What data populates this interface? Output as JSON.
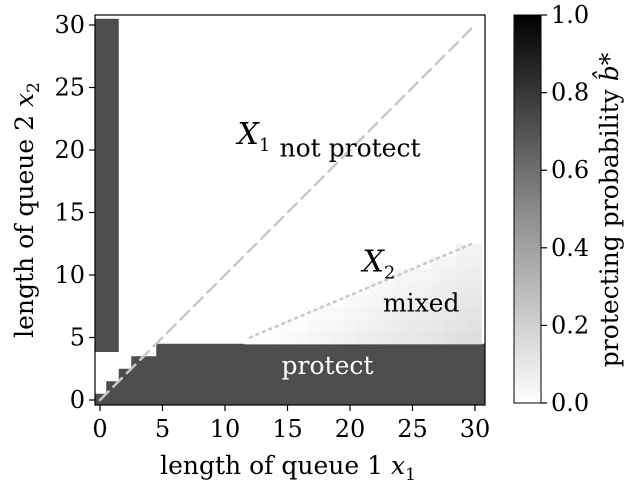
{
  "chart_data": {
    "type": "heatmap",
    "xlabel": "length of queue 1 ",
    "xlabel_var": "x",
    "xlabel_sub": "1",
    "ylabel": "length of queue 2 ",
    "ylabel_var": "x",
    "ylabel_sub": "2",
    "colorbar_label": "protecting probability ",
    "colorbar_var": "b̂*",
    "x_ticks": [
      "0",
      "5",
      "10",
      "15",
      "20",
      "25",
      "30"
    ],
    "y_ticks": [
      "0",
      "5",
      "10",
      "15",
      "20",
      "25",
      "30"
    ],
    "colorbar_ticks": [
      "0.0",
      "0.2",
      "0.4",
      "0.6",
      "0.8",
      "1.0"
    ],
    "xlim": [
      0,
      30
    ],
    "ylim": [
      0,
      30
    ],
    "colorbar_range": [
      0.0,
      1.0
    ],
    "colormap": "greys",
    "protect_value": 0.7,
    "protect_region": {
      "vertical_band": {
        "x_from": 0,
        "x_to": 1,
        "y_from": 4,
        "y_to": 30
      },
      "staircase": [
        {
          "x": 0,
          "y_top": 0
        },
        {
          "x": 1,
          "y_top": 1
        },
        {
          "x": 2,
          "y_top": 2
        },
        {
          "x": 3,
          "y_top": 3
        },
        {
          "x": 4,
          "y_top": 3
        },
        {
          "x": 5,
          "y_top": 4
        }
      ],
      "horizontal_band": {
        "x_from": 6,
        "x_to": 30,
        "y_from": 0,
        "y_to": 4
      }
    },
    "mixed_region": {
      "x_from": 12,
      "x_to": 30,
      "boundary_slope": 0.42,
      "min_prob": 0.0,
      "max_prob": 0.14
    },
    "lines": [
      {
        "kind": "diagonal",
        "style": "dashed",
        "color": "#c8c8c8",
        "from": [
          0,
          0
        ],
        "to": [
          30,
          30
        ]
      },
      {
        "kind": "mixed-boundary",
        "style": "dotted",
        "color": "#c8c8c8",
        "from": [
          12,
          5
        ],
        "to": [
          30,
          12.6
        ]
      }
    ],
    "annotations": [
      {
        "text": "not protect",
        "x": 20,
        "y": 19.5,
        "class": "region"
      },
      {
        "text": "mixed",
        "x": 25.7,
        "y": 7.1,
        "class": "region"
      },
      {
        "text": "protect",
        "x": 18.2,
        "y": 2.1,
        "class": "region-white"
      }
    ],
    "set_labels": [
      {
        "letter": "X",
        "sub": "1",
        "x": 11,
        "y": 20.5
      },
      {
        "letter": "X",
        "sub": "2",
        "x": 21,
        "y": 10.3
      }
    ],
    "grid": false
  }
}
